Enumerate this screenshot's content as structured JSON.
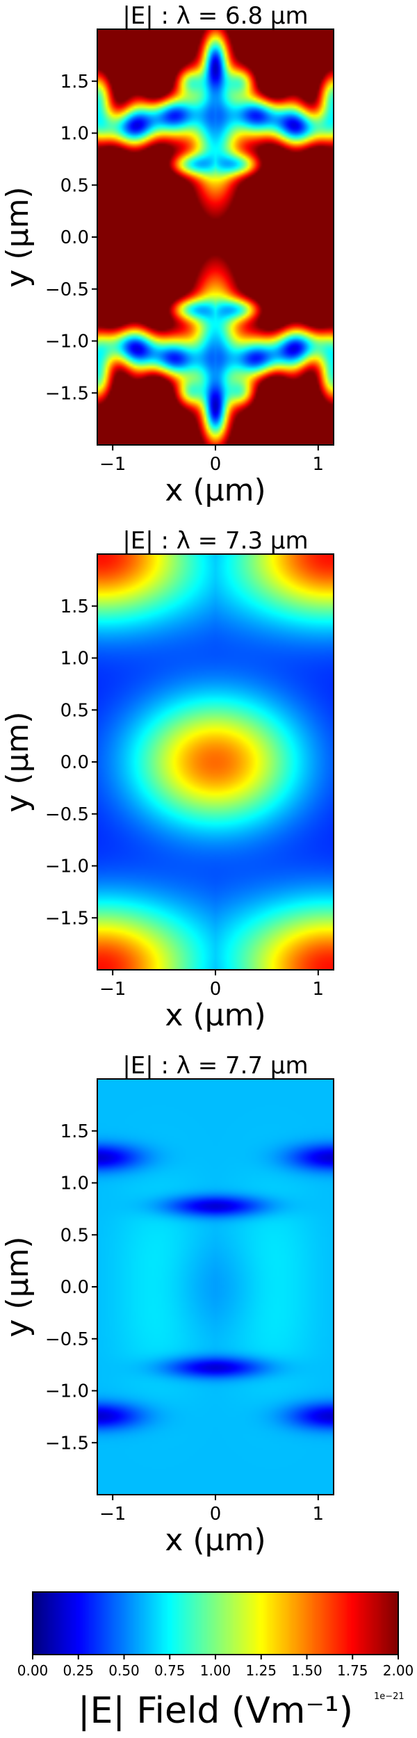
{
  "chart_data": [
    {
      "type": "heatmap",
      "title": "|E| :  λ = 6.8 μm",
      "xlabel": "x (μm)",
      "ylabel": "y (μm)",
      "xlim": [
        -1.15,
        1.15
      ],
      "ylim": [
        -2.0,
        2.0
      ],
      "xticks": [
        -1,
        0,
        1
      ],
      "xtick_labels": [
        "−1",
        "0",
        "1"
      ],
      "yticks": [
        -1.5,
        -1.0,
        -0.5,
        0.0,
        0.5,
        1.0,
        1.5
      ],
      "ytick_labels": [
        "−1.5",
        "−1.0",
        "−0.5",
        "0.0",
        "0.5",
        "1.0",
        "1.5"
      ],
      "colormap": "jet",
      "clim": [
        0,
        2e-21
      ],
      "field_pattern": "saturated (|E| ≥ 2e-21) over most of the cell; low-field lobes near y ≈ ±1.2 and along the x = 0 axis, symmetric in x and y"
    },
    {
      "type": "heatmap",
      "title": "|E| :  λ = 7.3 μm",
      "xlabel": "x (μm)",
      "ylabel": "y (μm)",
      "xlim": [
        -1.15,
        1.15
      ],
      "ylim": [
        -2.0,
        2.0
      ],
      "xticks": [
        -1,
        0,
        1
      ],
      "xtick_labels": [
        "−1",
        "0",
        "1"
      ],
      "yticks": [
        -1.5,
        -1.0,
        -0.5,
        0.0,
        0.5,
        1.0,
        1.5
      ],
      "ytick_labels": [
        "−1.5",
        "−1.0",
        "−0.5",
        "0.0",
        "0.5",
        "1.0",
        "1.5"
      ],
      "colormap": "jet",
      "clim": [
        0,
        2e-21
      ],
      "field_pattern": "central elliptical maximum near (0, 0) of about 1.5e-21; maxima of about 1.7e-21 at the four corners; background about 0.3e-21"
    },
    {
      "type": "heatmap",
      "title": "|E| :  λ = 7.7 μm",
      "xlabel": "x (μm)",
      "ylabel": "y (μm)",
      "xlim": [
        -1.15,
        1.15
      ],
      "ylim": [
        -2.0,
        2.0
      ],
      "xticks": [
        -1,
        0,
        1
      ],
      "xtick_labels": [
        "−1",
        "0",
        "1"
      ],
      "yticks": [
        -1.5,
        -1.0,
        -0.5,
        0.0,
        0.5,
        1.0,
        1.5
      ],
      "ytick_labels": [
        "−1.5",
        "−1.0",
        "−0.5",
        "0.0",
        "0.5",
        "1.0",
        "1.5"
      ],
      "colormap": "jet",
      "clim": [
        0,
        2e-21
      ],
      "field_pattern": "near-uniform field of about 0.55e-21; minima of about 0.15e-21 at (0, ±0.78) and at the side edges y ≈ ±1.25"
    }
  ],
  "colorbar": {
    "label": "|E|  Field (Vm⁻¹)",
    "ticks": [
      0.0,
      0.25,
      0.5,
      0.75,
      1.0,
      1.25,
      1.5,
      1.75,
      2.0
    ],
    "tick_labels": [
      "0.00",
      "0.25",
      "0.50",
      "0.75",
      "1.00",
      "1.25",
      "1.50",
      "1.75",
      "2.00"
    ],
    "offset_label": "1e−21",
    "colormap": "jet"
  }
}
